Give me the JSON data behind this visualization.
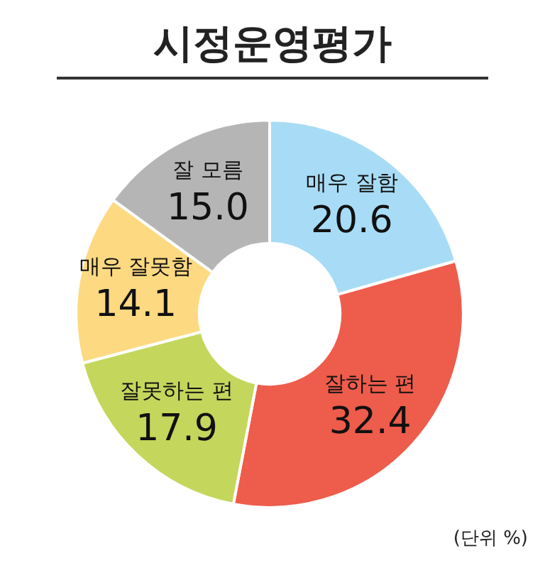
{
  "chart_data": {
    "type": "donut",
    "title": "시정운영평가",
    "categories": [
      "매우 잘함",
      "잘하는 편",
      "잘못하는 편",
      "매우 잘못함",
      "잘 모름"
    ],
    "values": [
      20.6,
      32.4,
      17.9,
      14.1,
      15.0
    ],
    "value_labels": [
      "20.6",
      "32.4",
      "17.9",
      "14.1",
      "15.0"
    ],
    "colors": [
      "#a8dcf6",
      "#ee5c4b",
      "#c5d65c",
      "#fdd981",
      "#b5b5b5"
    ],
    "annotations": [
      "(단위 %)"
    ],
    "legend": false
  }
}
